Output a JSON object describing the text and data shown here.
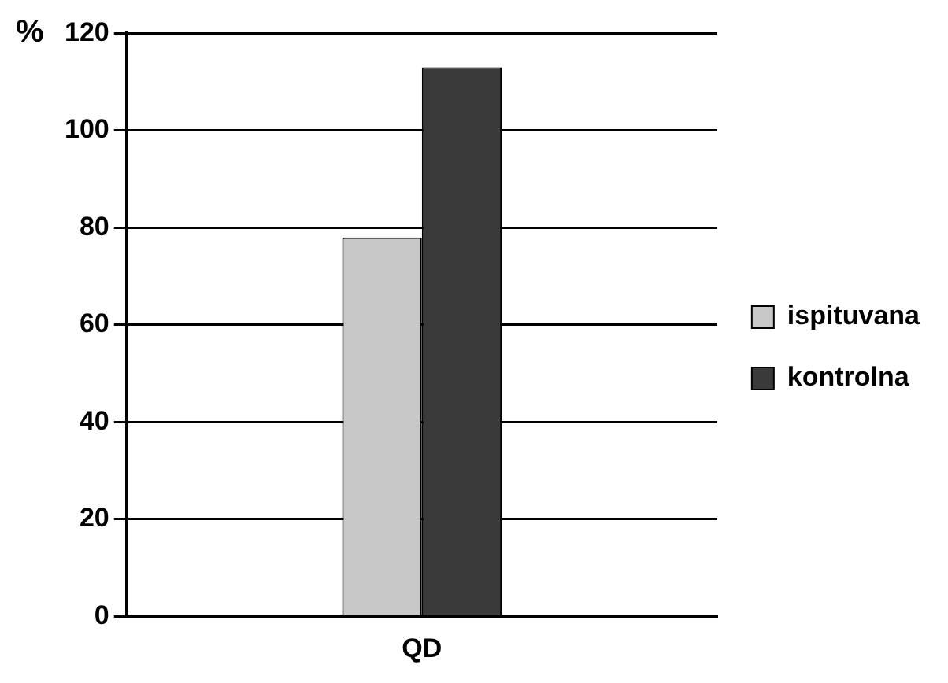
{
  "chart_data": {
    "type": "bar",
    "ylabel": "%",
    "categories": [
      "QD"
    ],
    "series": [
      {
        "name": "ispituvana",
        "color": "#c8c8c8",
        "values": [
          78
        ]
      },
      {
        "name": "kontrolna",
        "color": "#3a3a3a",
        "values": [
          113
        ]
      }
    ],
    "ylim": [
      0,
      120
    ],
    "yticks": [
      0,
      20,
      40,
      60,
      80,
      100,
      120
    ],
    "grid": "y",
    "legend": "right"
  }
}
